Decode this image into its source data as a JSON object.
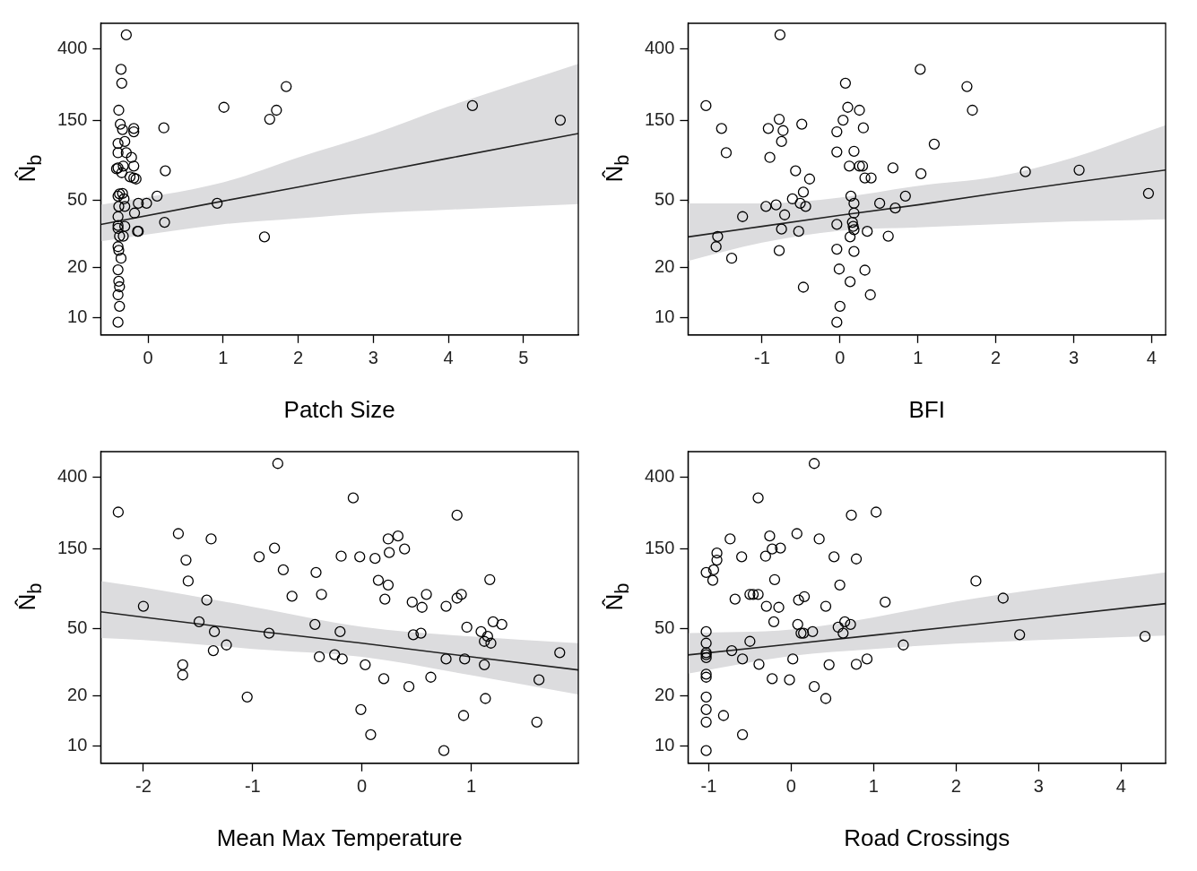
{
  "chart_data": [
    {
      "type": "scatter",
      "xlabel": "Patch Size",
      "ylabel": "N̂$_{b}$",
      "xlim": [
        -0.63,
        5.73
      ],
      "xticks": [
        0,
        1,
        2,
        3,
        4,
        5
      ],
      "ylim": [
        7.9,
        566
      ],
      "yticks": [
        10,
        20,
        50,
        150,
        400
      ],
      "log": "y",
      "grid": false,
      "marker": "circle",
      "series": [
        {
          "color": "#000000",
          "x": [
            -0.29,
            -0.36,
            -0.35,
            -0.39,
            -0.37,
            -0.19,
            -0.34,
            -0.19,
            -0.31,
            -0.4,
            -0.4,
            -0.29,
            -0.22,
            -0.19,
            -0.33,
            -0.4,
            -0.42,
            -0.35,
            -0.24,
            -0.16,
            -0.19,
            -0.38,
            -0.34,
            -0.4,
            -0.32,
            -0.39,
            -0.31,
            -0.4,
            -0.18,
            -0.13,
            -0.02,
            0.12,
            -0.4,
            -0.31,
            -0.4,
            -0.38,
            -0.33,
            -0.13,
            -0.14,
            -0.4,
            -0.39,
            -0.36,
            -0.4,
            -0.39,
            -0.38,
            -0.4,
            -0.38,
            -0.4,
            0.21,
            0.23,
            0.22,
            1.01,
            0.92,
            1.55,
            1.62,
            1.71,
            1.84,
            4.32,
            5.49
          ],
          "values": [
            483,
            301,
            249,
            172,
            142,
            134,
            132,
            128,
            112,
            109,
            96,
            96,
            90,
            80,
            80,
            78,
            77,
            73,
            69,
            67,
            68,
            54.6,
            55,
            53,
            51,
            46,
            46,
            40,
            42,
            48,
            48,
            53,
            35.4,
            35,
            34,
            30.6,
            30.6,
            32.7,
            32.7,
            26.5,
            25.2,
            22.6,
            19.3,
            16.5,
            15.3,
            13.7,
            11.7,
            9.4,
            135,
            75,
            37,
            179,
            48,
            30.3,
            152,
            172,
            238,
            183,
            150
          ]
        },
        {
          "type": "line",
          "marker": "none",
          "color": "#222222",
          "x": [
            -0.63,
            1,
            2,
            3,
            4,
            5.73
          ],
          "values": [
            35.9,
            49.5,
            60,
            73,
            89,
            125
          ],
          "lower": [
            28.5,
            36,
            39,
            42,
            44,
            47.5
          ],
          "upper": [
            47,
            64,
            90,
            124,
            181,
            325
          ]
        }
      ]
    },
    {
      "type": "scatter",
      "xlabel": "BFI",
      "ylabel": "N̂$_{b}$",
      "xlim": [
        -1.95,
        4.18
      ],
      "xticks": [
        -1,
        0,
        1,
        2,
        3,
        4
      ],
      "ylim": [
        7.9,
        566
      ],
      "yticks": [
        10,
        20,
        50,
        150,
        400
      ],
      "log": "y",
      "grid": false,
      "marker": "circle",
      "series": [
        {
          "color": "#000000",
          "x": [
            -0.77,
            1.03,
            0.07,
            1.63,
            -1.72,
            0.1,
            0.25,
            1.7,
            -0.78,
            0.04,
            -0.49,
            -1.52,
            -0.92,
            0.3,
            -0.73,
            -0.04,
            -0.75,
            1.21,
            -1.46,
            -0.04,
            0.18,
            -0.9,
            0.12,
            0.25,
            0.29,
            0.68,
            -0.57,
            1.04,
            2.38,
            3.07,
            0.32,
            0.4,
            -0.39,
            0.14,
            0.84,
            -0.47,
            -0.61,
            3.96,
            -0.95,
            -0.82,
            -0.51,
            -0.44,
            0.18,
            0.51,
            0.71,
            -1.25,
            -0.71,
            0.18,
            -0.04,
            0.16,
            0.17,
            0.18,
            -0.75,
            -0.53,
            0.35,
            -1.57,
            0.13,
            0.62,
            -1.59,
            -0.04,
            -0.78,
            0.18,
            -1.39,
            -0.01,
            0.32,
            0.13,
            -0.47,
            0.39,
            0.0,
            -0.04
          ],
          "values": [
            483,
            301,
            249,
            238,
            183,
            179,
            172,
            172,
            152,
            150,
            142,
            134,
            134,
            135,
            130,
            128,
            112,
            108,
            96,
            97,
            98,
            90,
            80,
            80,
            80,
            78,
            75,
            72,
            74,
            75.7,
            68,
            68,
            67,
            53,
            53,
            56,
            51,
            55,
            46,
            47,
            48,
            46,
            48,
            48,
            45,
            40,
            41,
            42,
            36,
            37,
            35,
            33.4,
            33.7,
            32.7,
            32.7,
            30.5,
            30.3,
            30.6,
            26.5,
            25.6,
            25.1,
            24.8,
            22.6,
            19.5,
            19.2,
            16.4,
            15.2,
            13.7,
            11.7,
            9.4
          ]
        },
        {
          "type": "line",
          "marker": "none",
          "color": "#222222",
          "x": [
            -1.95,
            -1,
            0,
            1,
            2,
            3,
            4.18
          ],
          "values": [
            30.3,
            35,
            40.7,
            47,
            55,
            64,
            75.8
          ],
          "lower": [
            21.8,
            28,
            33,
            34.5,
            36,
            37.5,
            38.5
          ],
          "upper": [
            48,
            48,
            52,
            61,
            69,
            90,
            140
          ]
        }
      ]
    },
    {
      "type": "scatter",
      "xlabel": "Mean Max Temperature",
      "ylabel": "N̂$_{b}$",
      "xlim": [
        -2.39,
        1.98
      ],
      "xticks": [
        -2,
        -1,
        0,
        1
      ],
      "ylim": [
        7.9,
        566
      ],
      "yticks": [
        10,
        20,
        50,
        150,
        400
      ],
      "log": "y",
      "grid": false,
      "marker": "circle",
      "series": [
        {
          "color": "#000000",
          "x": [
            -0.77,
            -0.08,
            -2.23,
            0.87,
            -1.68,
            0.33,
            -1.38,
            0.24,
            -0.8,
            0.39,
            0.25,
            -0.94,
            -0.19,
            -0.02,
            0.12,
            -1.61,
            -0.72,
            -0.42,
            1.17,
            -1.59,
            0.15,
            0.24,
            -0.64,
            -0.37,
            0.59,
            0.21,
            0.87,
            0.91,
            -1.42,
            0.46,
            -2.0,
            0.55,
            0.77,
            -1.49,
            1.2,
            -0.43,
            0.96,
            1.28,
            -1.35,
            -0.2,
            1.09,
            0.47,
            0.54,
            1.15,
            1.12,
            1.18,
            -0.85,
            -1.24,
            -1.36,
            -0.25,
            -0.39,
            -0.18,
            0.77,
            0.94,
            1.81,
            -1.64,
            0.03,
            1.12,
            -1.64,
            0.63,
            0.2,
            1.62,
            0.43,
            -1.05,
            1.13,
            -0.01,
            0.93,
            1.6,
            0.08,
            0.75
          ],
          "values": [
            481,
            300,
            247,
            237,
            184,
            178,
            171,
            171,
            151,
            149,
            142,
            134,
            135,
            134,
            131,
            128,
            112,
            108,
            98,
            96,
            97,
            91,
            78,
            80,
            80,
            75,
            76,
            80,
            74,
            72,
            68,
            67,
            68,
            55,
            55,
            53,
            51,
            53,
            48,
            48,
            48,
            46,
            47,
            45,
            42,
            41,
            47,
            40,
            37,
            35,
            34,
            33,
            33,
            33,
            36,
            30.5,
            30.5,
            30.5,
            26.5,
            25.7,
            25.2,
            24.8,
            22.6,
            19.6,
            19.2,
            16.5,
            15.2,
            13.9,
            11.7,
            9.4
          ]
        },
        {
          "type": "line",
          "marker": "none",
          "color": "#222222",
          "x": [
            -2.39,
            -2,
            -1,
            0,
            1,
            1.98
          ],
          "values": [
            63,
            58.5,
            48.7,
            41,
            34,
            28.4
          ],
          "lower": [
            44,
            42.8,
            37.9,
            34,
            26.4,
            20.3
          ],
          "upper": [
            96,
            88,
            67.5,
            51.3,
            44.9,
            41
          ]
        }
      ]
    },
    {
      "type": "scatter",
      "xlabel": "Road Crossings",
      "ylabel": "N̂$_{b}$",
      "xlim": [
        -1.25,
        4.54
      ],
      "xticks": [
        -1,
        0,
        1,
        2,
        3,
        4
      ],
      "ylim": [
        7.9,
        566
      ],
      "yticks": [
        10,
        20,
        50,
        150,
        400
      ],
      "log": "y",
      "grid": false,
      "marker": "circle",
      "series": [
        {
          "color": "#000000",
          "x": [
            0.28,
            -0.4,
            1.03,
            0.73,
            0.07,
            -0.26,
            -0.74,
            0.34,
            -0.23,
            -0.13,
            -0.9,
            -0.31,
            -0.6,
            0.52,
            0.79,
            -0.9,
            -0.94,
            -1.03,
            -0.95,
            -0.2,
            2.24,
            0.59,
            -0.5,
            -0.46,
            -0.4,
            0.16,
            -0.68,
            0.09,
            2.57,
            1.14,
            -0.3,
            -0.15,
            0.42,
            -0.21,
            0.08,
            0.65,
            0.72,
            0.57,
            -1.03,
            0.12,
            0.15,
            0.26,
            0.63,
            2.77,
            4.29,
            -1.03,
            -0.5,
            -0.72,
            -1.03,
            -1.03,
            -1.03,
            1.36,
            -0.59,
            0.02,
            0.92,
            -0.39,
            0.46,
            0.79,
            -1.03,
            -1.03,
            -0.23,
            -0.02,
            0.28,
            0.42,
            -1.03,
            -1.03,
            -0.82,
            -1.03,
            -0.59,
            -1.03
          ],
          "values": [
            481,
            300,
            247,
            237,
            184,
            178,
            171,
            171,
            149,
            151,
            141,
            135,
            134,
            134,
            130,
            128,
            112,
            108,
            97,
            98,
            96,
            91,
            80,
            80,
            80,
            77.6,
            75,
            74,
            76,
            72,
            68,
            67,
            68,
            55,
            53,
            55,
            53,
            51,
            48,
            47,
            47,
            48,
            47,
            46,
            45,
            41,
            42,
            37,
            36,
            35,
            33.6,
            40,
            33,
            33,
            33,
            30.7,
            30.5,
            30.7,
            26.8,
            25.7,
            25.2,
            24.8,
            22.6,
            19.2,
            19.6,
            16.5,
            15.2,
            13.9,
            11.7,
            9.4
          ]
        },
        {
          "type": "line",
          "marker": "none",
          "color": "#222222",
          "x": [
            -1.25,
            0,
            1,
            2,
            3,
            4.54
          ],
          "values": [
            34.9,
            40.5,
            45.7,
            51.6,
            58.2,
            70.5
          ],
          "lower": [
            27,
            34.4,
            37.9,
            40.7,
            42.8,
            45.5
          ],
          "upper": [
            47,
            49.4,
            58.4,
            72.6,
            86,
            108
          ]
        }
      ]
    }
  ]
}
